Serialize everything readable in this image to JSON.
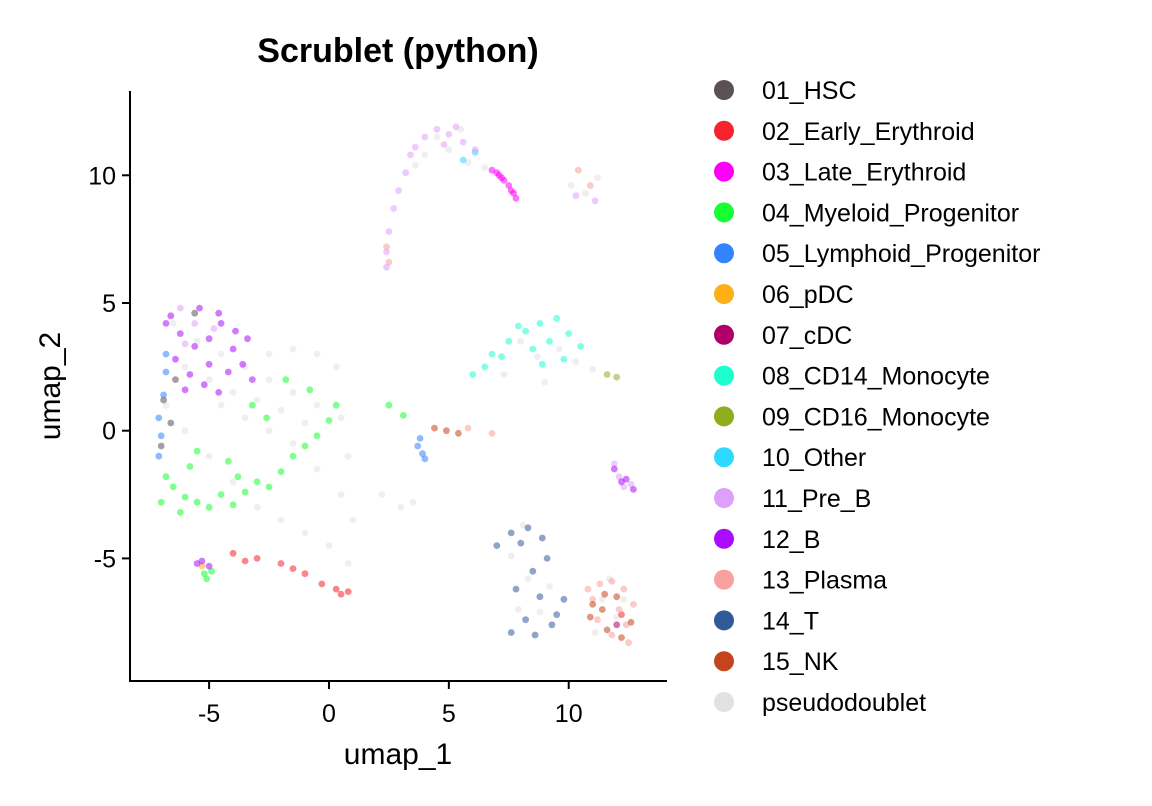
{
  "chart_data": {
    "type": "scatter",
    "title": "Scrublet (python)",
    "xlabel": "umap_1",
    "ylabel": "umap_2",
    "xlim": [
      -8.3,
      14.1
    ],
    "ylim": [
      -9.8,
      13.3
    ],
    "x_ticks": [
      -5,
      0,
      5,
      10
    ],
    "y_ticks": [
      -5,
      0,
      5,
      10
    ],
    "x_tick_labels": [
      "-5",
      "0",
      "5",
      "10"
    ],
    "y_tick_labels": [
      "-5",
      "0",
      "5",
      "10"
    ],
    "grid": false,
    "legend_position": "right",
    "series": [
      {
        "name": "01_HSC",
        "color": "#5A5156",
        "points": [
          [
            -6.9,
            1.2
          ],
          [
            -6.6,
            0.3
          ],
          [
            -7.0,
            -0.6
          ],
          [
            -6.4,
            2.0
          ],
          [
            -5.6,
            4.6
          ]
        ]
      },
      {
        "name": "02_Early_Erythroid",
        "color": "#F6222E",
        "points": [
          [
            -4.0,
            -4.8
          ],
          [
            -3.0,
            -5.0
          ],
          [
            -2.0,
            -5.2
          ],
          [
            -1.0,
            -5.6
          ],
          [
            -0.3,
            -6.0
          ],
          [
            0.3,
            -6.2
          ],
          [
            0.8,
            -6.3
          ],
          [
            -3.5,
            -5.1
          ],
          [
            -1.5,
            -5.4
          ],
          [
            0.5,
            -6.4
          ],
          [
            12.2,
            -7.2
          ]
        ]
      },
      {
        "name": "03_Late_Erythroid",
        "color": "#FE00FA",
        "points": [
          [
            6.8,
            10.2
          ],
          [
            7.1,
            10.0
          ],
          [
            7.3,
            9.8
          ],
          [
            7.5,
            9.6
          ],
          [
            7.7,
            9.3
          ],
          [
            7.8,
            9.1
          ],
          [
            7.0,
            10.1
          ],
          [
            7.6,
            9.4
          ],
          [
            7.2,
            9.9
          ]
        ]
      },
      {
        "name": "04_Myeloid_Progenitor",
        "color": "#16FF32",
        "points": [
          [
            -6.5,
            -2.2
          ],
          [
            -6.0,
            -2.6
          ],
          [
            -5.5,
            -2.8
          ],
          [
            -5.0,
            -3.0
          ],
          [
            -4.5,
            -2.5
          ],
          [
            -4.0,
            -2.9
          ],
          [
            -3.5,
            -2.4
          ],
          [
            -3.0,
            -2.0
          ],
          [
            -2.5,
            -2.2
          ],
          [
            -2.0,
            -1.6
          ],
          [
            -1.5,
            -1.0
          ],
          [
            -1.0,
            -0.6
          ],
          [
            -0.5,
            -0.2
          ],
          [
            0.0,
            0.4
          ],
          [
            0.3,
            1.0
          ],
          [
            -6.8,
            -1.8
          ],
          [
            -7.0,
            -2.8
          ],
          [
            -6.2,
            -3.2
          ],
          [
            -5.8,
            -1.4
          ],
          [
            -5.2,
            -5.6
          ],
          [
            -4.9,
            -5.5
          ],
          [
            -5.1,
            -5.8
          ],
          [
            -3.2,
            1.0
          ],
          [
            -2.6,
            0.5
          ],
          [
            -1.8,
            2.0
          ],
          [
            -4.2,
            -1.2
          ],
          [
            -3.8,
            -1.8
          ],
          [
            -5.5,
            -0.8
          ],
          [
            2.5,
            1.0
          ],
          [
            3.1,
            0.6
          ],
          [
            -0.8,
            1.6
          ]
        ]
      },
      {
        "name": "05_Lymphoid_Progenitor",
        "color": "#3283FE",
        "points": [
          [
            -7.0,
            -0.2
          ],
          [
            -7.1,
            0.5
          ],
          [
            -6.9,
            1.4
          ],
          [
            -6.8,
            2.3
          ],
          [
            -7.1,
            -1.0
          ],
          [
            -6.8,
            3.0
          ],
          [
            3.7,
            -0.6
          ],
          [
            3.9,
            -0.9
          ],
          [
            4.0,
            -1.1
          ],
          [
            3.8,
            -0.3
          ]
        ]
      },
      {
        "name": "06_pDC",
        "color": "#FEAF16",
        "points": [
          [
            -5.3,
            -5.3
          ]
        ]
      },
      {
        "name": "07_cDC",
        "color": "#B00068",
        "points": [
          [
            12.0,
            -7.6
          ]
        ]
      },
      {
        "name": "08_CD14_Monocyte",
        "color": "#1CFFCE",
        "points": [
          [
            6.0,
            2.2
          ],
          [
            6.8,
            3.0
          ],
          [
            7.5,
            3.5
          ],
          [
            8.2,
            3.9
          ],
          [
            8.8,
            4.2
          ],
          [
            9.5,
            4.4
          ],
          [
            10.0,
            3.8
          ],
          [
            10.5,
            3.3
          ],
          [
            8.5,
            3.2
          ],
          [
            9.2,
            3.5
          ],
          [
            7.9,
            4.1
          ],
          [
            9.8,
            2.8
          ],
          [
            6.5,
            2.5
          ],
          [
            7.2,
            2.9
          ],
          [
            8.9,
            2.6
          ]
        ]
      },
      {
        "name": "09_CD16_Monocyte",
        "color": "#90AD1C",
        "points": [
          [
            11.6,
            2.2
          ],
          [
            12.0,
            2.1
          ]
        ]
      },
      {
        "name": "10_Other",
        "color": "#2ED9FF",
        "points": [
          [
            5.6,
            10.6
          ],
          [
            6.1,
            10.9
          ]
        ]
      },
      {
        "name": "11_Pre_B",
        "color": "#DEA0FD",
        "points": [
          [
            4.0,
            11.5
          ],
          [
            4.5,
            11.8
          ],
          [
            5.0,
            11.6
          ],
          [
            5.6,
            11.3
          ],
          [
            6.1,
            11.0
          ],
          [
            3.4,
            10.8
          ],
          [
            3.2,
            10.1
          ],
          [
            2.9,
            9.4
          ],
          [
            2.7,
            8.7
          ],
          [
            2.5,
            7.8
          ],
          [
            2.4,
            7.0
          ],
          [
            2.4,
            6.4
          ],
          [
            5.3,
            11.9
          ],
          [
            4.8,
            11.2
          ],
          [
            3.6,
            11.1
          ],
          [
            -6.2,
            4.8
          ],
          [
            -5.6,
            4.2
          ],
          [
            -4.8,
            4.0
          ],
          [
            -6.0,
            3.4
          ],
          [
            12.1,
            -1.8
          ],
          [
            12.6,
            -2.1
          ],
          [
            11.9,
            -1.3
          ],
          [
            12.3,
            -2.2
          ],
          [
            10.3,
            9.2
          ],
          [
            11.1,
            9.0
          ]
        ]
      },
      {
        "name": "12_B",
        "color": "#AA0DFE",
        "points": [
          [
            -6.6,
            4.5
          ],
          [
            -6.2,
            3.8
          ],
          [
            -5.6,
            3.3
          ],
          [
            -5.0,
            3.6
          ],
          [
            -4.5,
            4.2
          ],
          [
            -4.0,
            3.2
          ],
          [
            -3.6,
            2.6
          ],
          [
            -3.2,
            2.0
          ],
          [
            -6.4,
            2.8
          ],
          [
            -5.8,
            2.2
          ],
          [
            -5.0,
            2.6
          ],
          [
            -4.2,
            2.3
          ],
          [
            -6.8,
            4.2
          ],
          [
            -5.4,
            4.8
          ],
          [
            -4.6,
            4.6
          ],
          [
            -3.9,
            3.9
          ],
          [
            -6.0,
            1.6
          ],
          [
            -5.2,
            1.8
          ],
          [
            -4.6,
            1.5
          ],
          [
            -3.4,
            3.6
          ],
          [
            -5.3,
            -5.1
          ],
          [
            -5.0,
            -5.3
          ],
          [
            -5.5,
            -5.2
          ],
          [
            11.9,
            -1.5
          ],
          [
            12.4,
            -1.9
          ],
          [
            12.7,
            -2.3
          ],
          [
            12.2,
            -2.0
          ]
        ]
      },
      {
        "name": "13_Plasma",
        "color": "#F8A19F",
        "points": [
          [
            2.5,
            6.6
          ],
          [
            2.4,
            7.2
          ],
          [
            10.8,
            -6.2
          ],
          [
            11.3,
            -6.0
          ],
          [
            11.8,
            -5.9
          ],
          [
            12.3,
            -6.2
          ],
          [
            12.7,
            -6.8
          ],
          [
            12.4,
            -7.6
          ],
          [
            11.8,
            -8.0
          ],
          [
            11.2,
            -7.4
          ],
          [
            11.0,
            -6.6
          ],
          [
            12.5,
            -8.3
          ],
          [
            10.4,
            10.2
          ],
          [
            10.9,
            9.6
          ],
          [
            6.8,
            -0.1
          ],
          [
            5.8,
            0.1
          ],
          [
            12.1,
            -7.0
          ]
        ]
      },
      {
        "name": "14_T",
        "color": "#325A9B",
        "points": [
          [
            7.0,
            -4.5
          ],
          [
            7.6,
            -4.0
          ],
          [
            8.3,
            -3.8
          ],
          [
            8.9,
            -4.2
          ],
          [
            8.5,
            -5.5
          ],
          [
            8.8,
            -6.5
          ],
          [
            8.2,
            -7.4
          ],
          [
            7.6,
            -7.9
          ],
          [
            8.6,
            -8.0
          ],
          [
            9.3,
            -7.6
          ],
          [
            9.8,
            -6.6
          ],
          [
            7.8,
            -6.2
          ],
          [
            9.1,
            -5.0
          ],
          [
            8.0,
            -4.4
          ],
          [
            9.5,
            -7.2
          ]
        ]
      },
      {
        "name": "15_NK",
        "color": "#C4451C",
        "points": [
          [
            11.0,
            -6.8
          ],
          [
            11.5,
            -6.4
          ],
          [
            12.0,
            -6.5
          ],
          [
            12.6,
            -7.5
          ],
          [
            11.6,
            -7.8
          ],
          [
            12.2,
            -8.1
          ],
          [
            10.9,
            -7.3
          ],
          [
            11.4,
            -7.0
          ],
          [
            4.4,
            0.1
          ],
          [
            4.9,
            0.0
          ],
          [
            5.4,
            -0.1
          ]
        ]
      },
      {
        "name": "pseudodoublet",
        "color": "#E2E2E2",
        "points": [
          [
            -6.5,
            4.2
          ],
          [
            -5.5,
            3.5
          ],
          [
            -4.5,
            3.0
          ],
          [
            -3.5,
            2.5
          ],
          [
            -2.5,
            2.0
          ],
          [
            -1.5,
            1.5
          ],
          [
            -0.5,
            1.0
          ],
          [
            0.5,
            0.5
          ],
          [
            -6.8,
            1.0
          ],
          [
            -6.0,
            0.0
          ],
          [
            -5.0,
            -1.0
          ],
          [
            -4.0,
            -2.0
          ],
          [
            -3.0,
            -3.0
          ],
          [
            -2.0,
            -3.5
          ],
          [
            -1.0,
            -4.0
          ],
          [
            0.0,
            -4.5
          ],
          [
            0.8,
            -5.2
          ],
          [
            -2.5,
            3.0
          ],
          [
            -1.5,
            3.2
          ],
          [
            -0.5,
            3.0
          ],
          [
            0.3,
            2.5
          ],
          [
            -4.5,
            1.0
          ],
          [
            -3.5,
            0.5
          ],
          [
            -2.5,
            0.0
          ],
          [
            -1.5,
            -0.5
          ],
          [
            -0.5,
            -1.5
          ],
          [
            0.5,
            -2.5
          ],
          [
            1.0,
            -3.5
          ],
          [
            -6.0,
            2.5
          ],
          [
            -5.0,
            2.0
          ],
          [
            -4.0,
            1.5
          ],
          [
            -3.0,
            1.2
          ],
          [
            -2.0,
            0.8
          ],
          [
            -1.0,
            0.3
          ],
          [
            0.8,
            -1.0
          ],
          [
            4.5,
            11.5
          ],
          [
            5.0,
            11.0
          ],
          [
            5.8,
            10.5
          ],
          [
            6.5,
            10.3
          ],
          [
            4.0,
            10.8
          ],
          [
            3.6,
            10.4
          ],
          [
            5.5,
            11.8
          ],
          [
            8.0,
            3.5
          ],
          [
            8.7,
            2.9
          ],
          [
            9.6,
            3.2
          ],
          [
            10.3,
            2.7
          ],
          [
            9.0,
            1.9
          ],
          [
            11.0,
            2.4
          ],
          [
            7.3,
            2.2
          ],
          [
            7.6,
            -4.9
          ],
          [
            8.3,
            -5.8
          ],
          [
            8.8,
            -7.1
          ],
          [
            7.9,
            -7.0
          ],
          [
            9.2,
            -6.1
          ],
          [
            8.1,
            -3.7
          ],
          [
            11.4,
            -6.6
          ],
          [
            12.0,
            -7.3
          ],
          [
            11.7,
            -5.8
          ],
          [
            12.3,
            -6.6
          ],
          [
            11.1,
            -7.9
          ],
          [
            10.1,
            9.6
          ],
          [
            11.2,
            9.9
          ],
          [
            10.7,
            9.3
          ],
          [
            2.2,
            -2.5
          ],
          [
            3.0,
            -3.0
          ],
          [
            3.5,
            -2.8
          ]
        ]
      }
    ]
  }
}
